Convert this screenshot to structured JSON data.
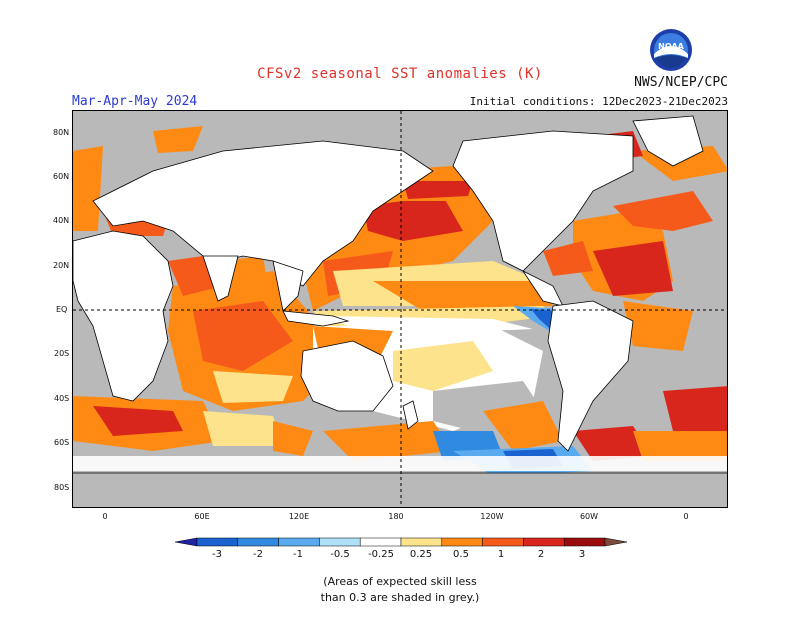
{
  "header": {
    "title": "CFSv2 seasonal SST anomalies (K)",
    "season": "Mar-Apr-May 2024",
    "initial_conditions": "Initial conditions: 12Dec2023-21Dec2023",
    "agency": "NWS/NCEP/CPC",
    "logo_text": "NOAA"
  },
  "map": {
    "projection": "equirectangular",
    "grey_meaning": "low skill",
    "lat_labels": [
      "80N",
      "60N",
      "40N",
      "20N",
      "EQ",
      "20S",
      "40S",
      "60S",
      "80S"
    ],
    "lon_labels": [
      "0",
      "60E",
      "120E",
      "180",
      "120W",
      "60W",
      "0"
    ],
    "land_color": "#ffffff",
    "low_skill_color": "#b9b9b9"
  },
  "legend": {
    "labels": [
      "-3",
      "-2",
      "-1",
      "-0.5",
      "-0.25",
      "0.25",
      "0.5",
      "1",
      "2",
      "3"
    ],
    "colors": [
      "#1f23a3",
      "#1b62d1",
      "#2f8ae0",
      "#5aaaf0",
      "#aee0f7",
      "#ffffff",
      "#fde38b",
      "#fe8a14",
      "#f65a1a",
      "#d8261c",
      "#9b0d0d",
      "#7a4a3a"
    ],
    "note_line1": "(Areas of expected skill less",
    "note_line2": "than 0.3 are shaded in grey.)"
  }
}
